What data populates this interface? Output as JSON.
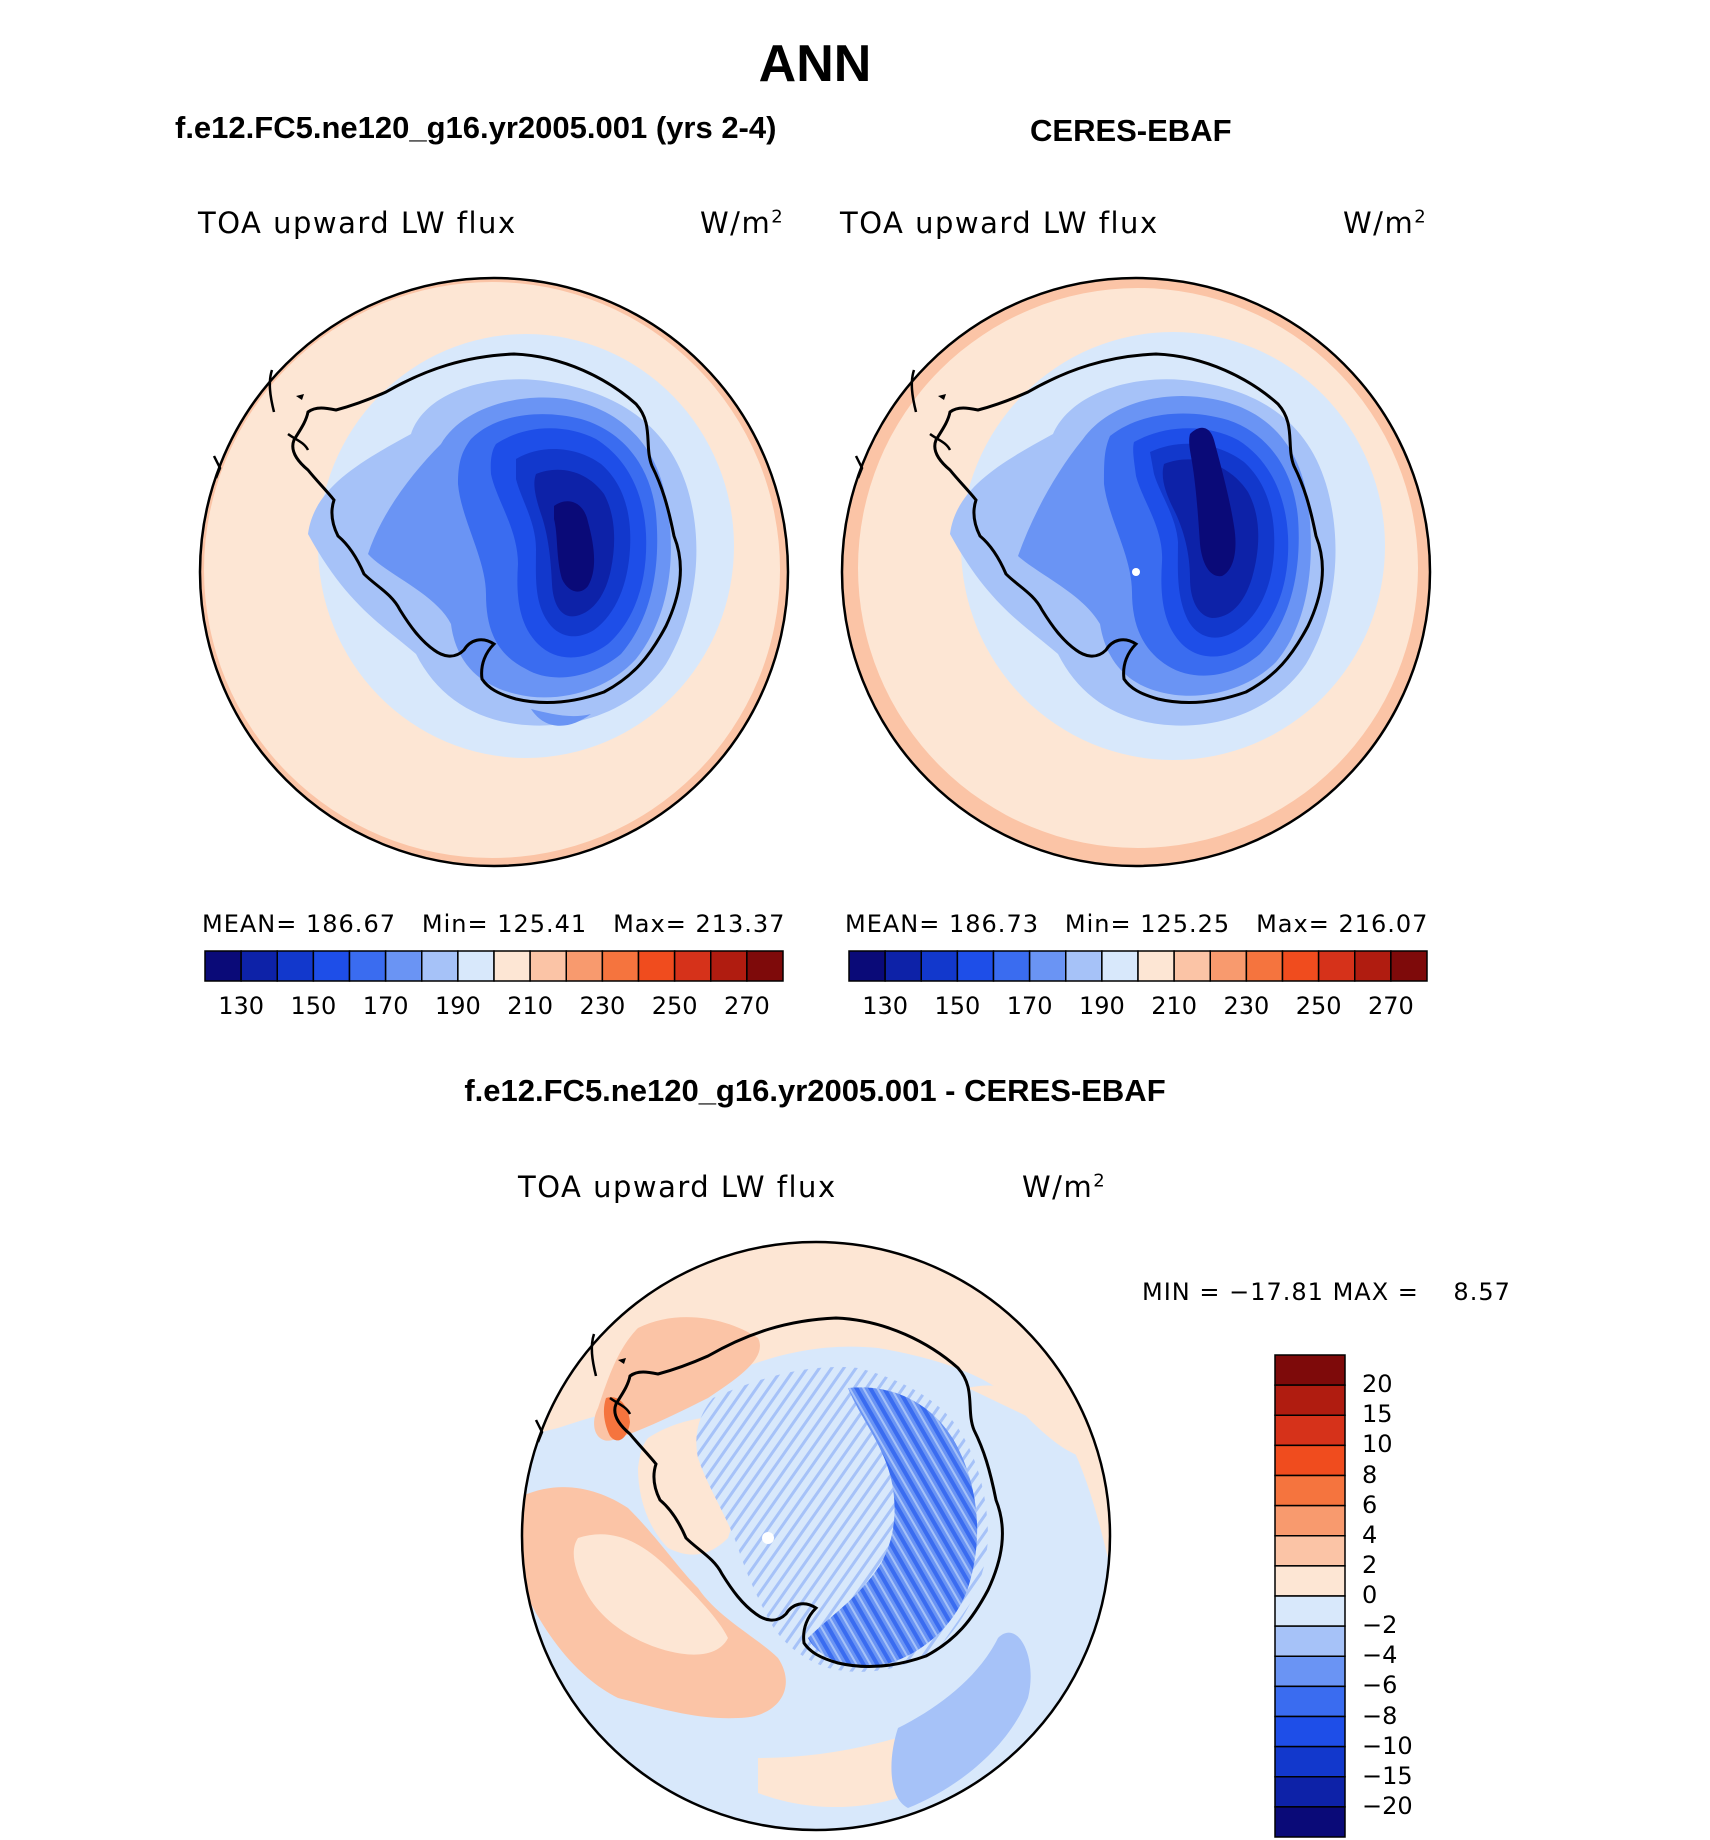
{
  "page": {
    "title": "ANN"
  },
  "panels": [
    {
      "title": "f.e12.FC5.ne120_g16.yr2005.001 (yrs 2-4)",
      "variable": "TOA upward LW flux",
      "unit_prefix": "W/m",
      "unit_exp": "2",
      "stats": {
        "mean_label": "MEAN=",
        "mean": "186.67",
        "min_label": "Min=",
        "min": "125.41",
        "max_label": "Max=",
        "max": "213.37"
      }
    },
    {
      "title": "CERES-EBAF",
      "variable": "TOA upward LW flux",
      "unit_prefix": "W/m",
      "unit_exp": "2",
      "stats": {
        "mean_label": "MEAN=",
        "mean": "186.73",
        "min_label": "Min=",
        "min": "125.25",
        "max_label": "Max=",
        "max": "216.07"
      }
    },
    {
      "title": "f.e12.FC5.ne120_g16.yr2005.001 - CERES-EBAF",
      "variable": "TOA upward LW flux",
      "unit_prefix": "W/m",
      "unit_exp": "2",
      "stats": {
        "min_label": "MIN =",
        "min": "−17.81",
        "max_label": "MAX =",
        "max": "8.57"
      }
    }
  ],
  "colorbar_abs": {
    "colors": [
      "#0a0a78",
      "#0d22a8",
      "#1238cc",
      "#1e4ee8",
      "#3a6cf0",
      "#6a94f4",
      "#a6c2f8",
      "#d8e8fb",
      "#fde6d4",
      "#fbc4a6",
      "#f89a6e",
      "#f5743e",
      "#f04c1e",
      "#d6321a",
      "#b01c10",
      "#7e0a0a"
    ],
    "labels": [
      "130",
      "150",
      "170",
      "190",
      "210",
      "230",
      "250",
      "270"
    ]
  },
  "colorbar_diff": {
    "colors": [
      "#0a0a78",
      "#0d22a8",
      "#1238cc",
      "#1e4ee8",
      "#3a6cf0",
      "#6a94f4",
      "#a6c2f8",
      "#d8e8fb",
      "#fde6d4",
      "#fbc4a6",
      "#f89a6e",
      "#f5743e",
      "#f04c1e",
      "#d6321a",
      "#b01c10",
      "#7e0a0a"
    ],
    "labels": [
      "−20",
      "−15",
      "−10",
      "−8",
      "−6",
      "−4",
      "−2",
      "0",
      "2",
      "4",
      "6",
      "8",
      "10",
      "15",
      "20"
    ]
  }
}
